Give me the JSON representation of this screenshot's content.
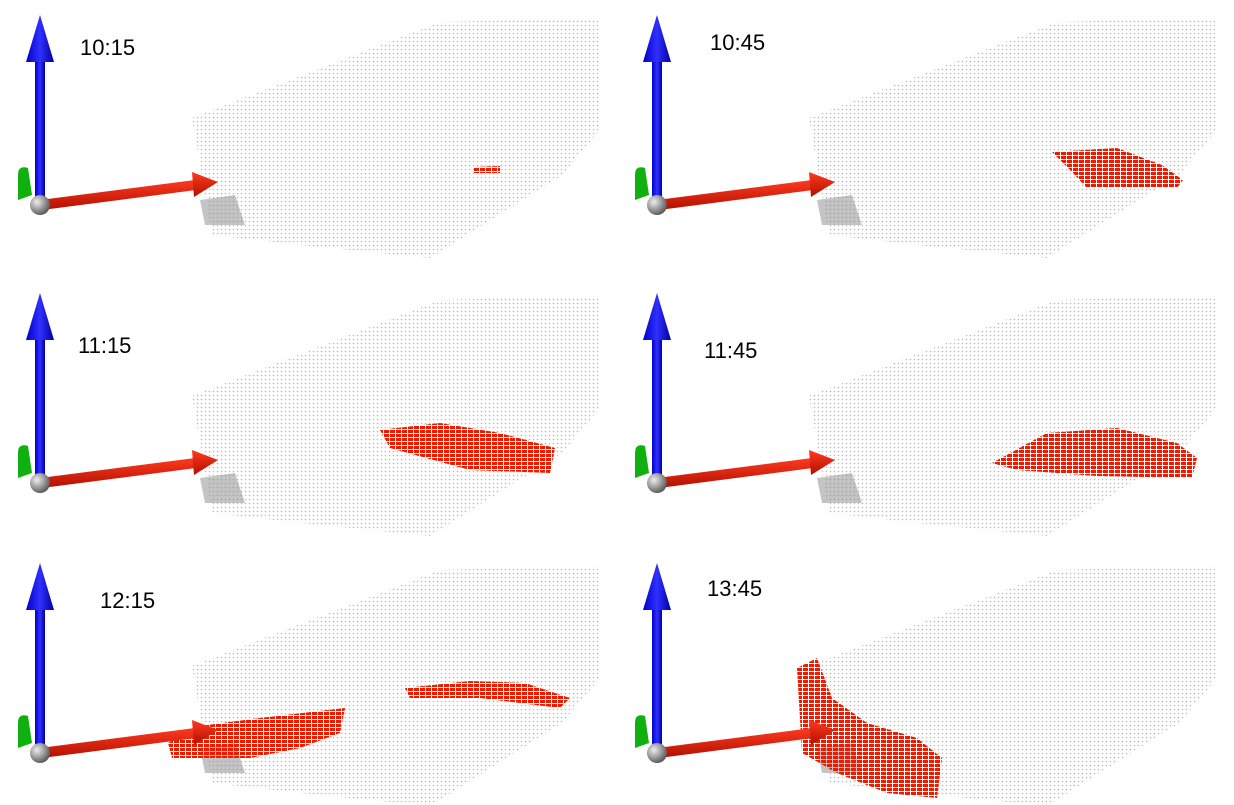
{
  "panels": [
    {
      "time": "10:15"
    },
    {
      "time": "10:45"
    },
    {
      "time": "11:15"
    },
    {
      "time": "11:45"
    },
    {
      "time": "12:15"
    },
    {
      "time": "13:45"
    }
  ]
}
